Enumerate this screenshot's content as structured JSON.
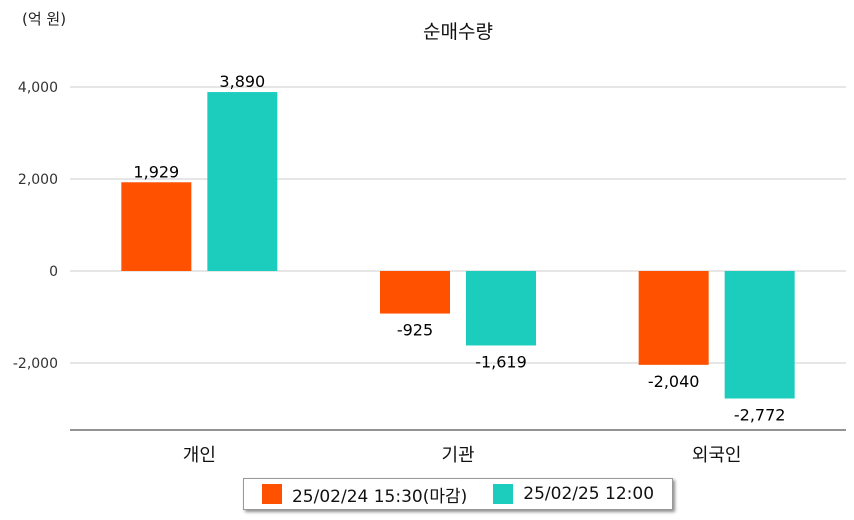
{
  "chart_data": {
    "type": "bar",
    "title": "순매수량",
    "unit_label": "(억 원)",
    "categories": [
      "개인",
      "기관",
      "외국인"
    ],
    "series": [
      {
        "name": "25/02/24 15:30(마감)",
        "color": "#ff5100",
        "values": [
          1929,
          -925,
          -2040
        ]
      },
      {
        "name": "25/02/25 12:00",
        "color": "#1ccdbe",
        "values": [
          3890,
          -1619,
          -2772
        ]
      }
    ],
    "value_labels": [
      [
        "1,929",
        "-925",
        "-2,040"
      ],
      [
        "3,890",
        "-1,619",
        "-2,772"
      ]
    ],
    "yticks": [
      4000,
      2000,
      0,
      -2000
    ],
    "ytick_labels": [
      "4,000",
      "2,000",
      "0",
      "-2,000"
    ],
    "ylim": [
      -3500,
      4000
    ],
    "grid": true,
    "legend_position": "bottom"
  }
}
